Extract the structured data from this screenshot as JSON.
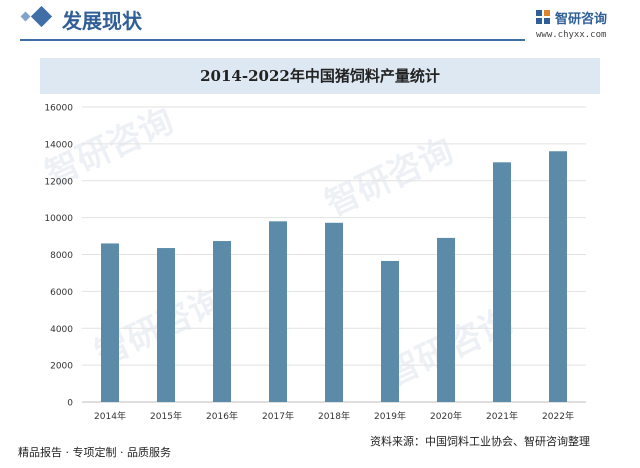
{
  "header": {
    "section_title": "发展现状",
    "logo_text": "智研咨询",
    "logo_url": "www.chyxx.com"
  },
  "chart_data": {
    "type": "bar",
    "title": "2014-2022年中国猪饲料产量统计",
    "categories": [
      "2014年",
      "2015年",
      "2016年",
      "2017年",
      "2018年",
      "2019年",
      "2020年",
      "2021年",
      "2022年"
    ],
    "values": [
      8600,
      8350,
      8730,
      9800,
      9720,
      7650,
      8900,
      13000,
      13600
    ],
    "ylim": [
      0,
      16000
    ],
    "yticks": [
      "0",
      "2000",
      "4000",
      "6000",
      "8000",
      "10000",
      "12000",
      "14000",
      "16000"
    ],
    "grid": true,
    "bar_color": "#5b8ba8"
  },
  "footer": {
    "left": "精品报告 · 专项定制 · 品质服务",
    "source": "资料来源：中国饲料工业协会、智研咨询整理"
  },
  "watermark_text": "智研咨询"
}
